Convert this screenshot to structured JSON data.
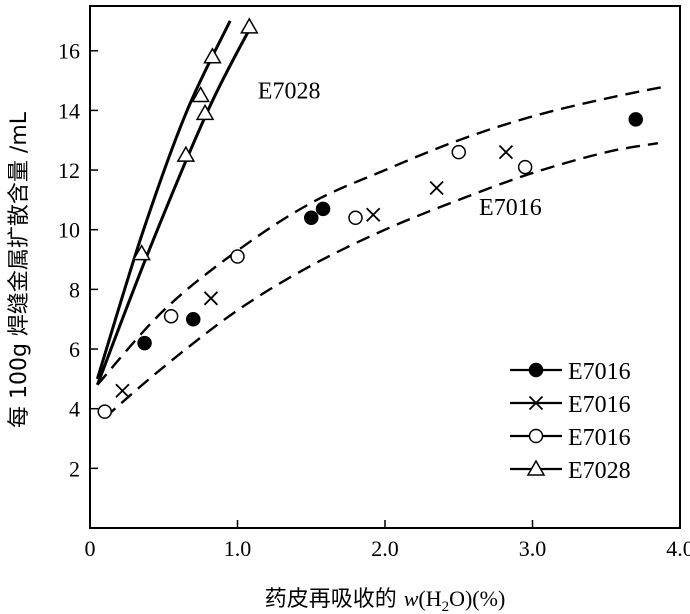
{
  "chart_data": {
    "type": "scatter",
    "xlabel_prefix": "药皮再吸收的 ",
    "xlabel_var": "w",
    "xlabel_rest_a": "(H",
    "xlabel_sub": "2",
    "xlabel_rest_b": "O)(%)",
    "ylabel": "每 100g 焊缝金属扩散含量 /mL",
    "xlim": [
      0,
      4.0
    ],
    "ylim": [
      0,
      17.5
    ],
    "x_ticks": [
      {
        "value": 0,
        "label": "0"
      },
      {
        "value": 1.0,
        "label": "1.0"
      },
      {
        "value": 2.0,
        "label": "2.0"
      },
      {
        "value": 3.0,
        "label": "3.0"
      },
      {
        "value": 4.0,
        "label": "4.0"
      }
    ],
    "y_ticks": [
      {
        "value": 2,
        "label": "2"
      },
      {
        "value": 4,
        "label": "4"
      },
      {
        "value": 6,
        "label": "6"
      },
      {
        "value": 8,
        "label": "8"
      },
      {
        "value": 10,
        "label": "10"
      },
      {
        "value": 12,
        "label": "12"
      },
      {
        "value": 14,
        "label": "14"
      },
      {
        "value": 16,
        "label": "16"
      }
    ],
    "annotations": [
      {
        "text": "E7028",
        "x": 1.35,
        "y": 14.4
      },
      {
        "text": "E7016",
        "x": 2.85,
        "y": 10.5
      }
    ],
    "series": [
      {
        "name": "E7016",
        "marker": "filled-circle",
        "points": [
          [
            0.37,
            6.2
          ],
          [
            0.7,
            7.0
          ],
          [
            1.5,
            10.4
          ],
          [
            1.58,
            10.7
          ],
          [
            3.7,
            13.7
          ]
        ]
      },
      {
        "name": "E7016",
        "marker": "cross",
        "points": [
          [
            0.22,
            4.6
          ],
          [
            0.82,
            7.7
          ],
          [
            1.92,
            10.5
          ],
          [
            2.35,
            11.4
          ],
          [
            2.82,
            12.6
          ]
        ]
      },
      {
        "name": "E7016",
        "marker": "open-circle",
        "points": [
          [
            0.1,
            3.9
          ],
          [
            0.55,
            7.1
          ],
          [
            1.0,
            9.1
          ],
          [
            1.8,
            10.4
          ],
          [
            2.5,
            12.6
          ],
          [
            2.95,
            12.1
          ]
        ]
      },
      {
        "name": "E7028",
        "marker": "open-triangle",
        "points": [
          [
            0.35,
            9.2
          ],
          [
            0.65,
            12.5
          ],
          [
            0.75,
            14.5
          ],
          [
            0.78,
            13.9
          ],
          [
            0.83,
            15.8
          ],
          [
            1.08,
            16.8
          ]
        ]
      }
    ],
    "curves": [
      {
        "style": "solid",
        "points": [
          [
            0.05,
            5.0
          ],
          [
            0.35,
            9.8
          ],
          [
            0.65,
            13.9
          ],
          [
            0.95,
            17.0
          ]
        ]
      },
      {
        "style": "solid",
        "points": [
          [
            0.05,
            4.8
          ],
          [
            0.4,
            9.3
          ],
          [
            0.8,
            14.0
          ],
          [
            1.1,
            16.9
          ]
        ]
      },
      {
        "style": "dashed",
        "points": [
          [
            0.05,
            4.8
          ],
          [
            0.5,
            7.3
          ],
          [
            1.0,
            9.3
          ],
          [
            1.5,
            10.9
          ],
          [
            2.0,
            12.0
          ],
          [
            2.5,
            13.0
          ],
          [
            3.0,
            13.8
          ],
          [
            3.5,
            14.4
          ],
          [
            3.9,
            14.8
          ]
        ]
      },
      {
        "style": "dashed",
        "points": [
          [
            0.1,
            3.7
          ],
          [
            0.5,
            5.4
          ],
          [
            1.0,
            7.3
          ],
          [
            1.5,
            8.8
          ],
          [
            2.0,
            10.0
          ],
          [
            2.5,
            11.0
          ],
          [
            3.0,
            11.9
          ],
          [
            3.5,
            12.6
          ],
          [
            3.85,
            12.9
          ]
        ]
      }
    ]
  }
}
